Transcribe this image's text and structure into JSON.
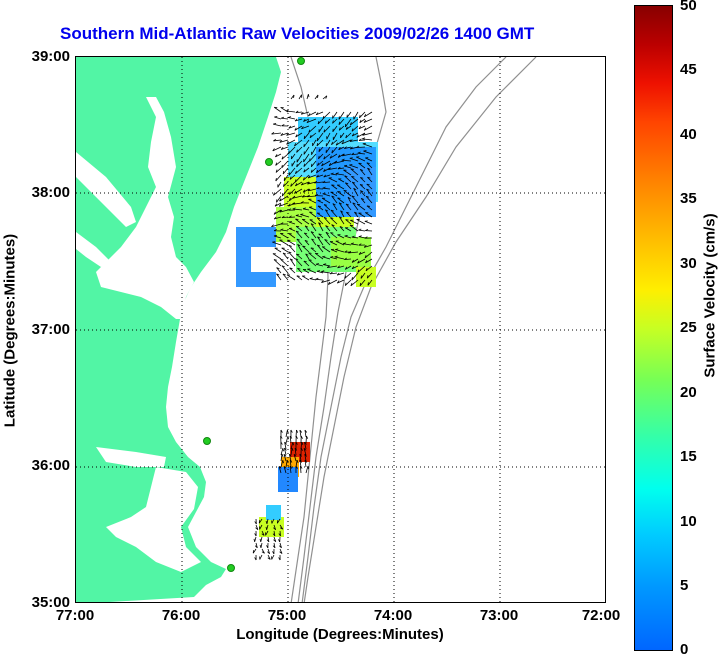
{
  "title": "Southern Mid-Atlantic Raw Velocities 2009/02/26 1400 GMT",
  "x_axis": {
    "label": "Longitude (Degrees:Minutes)",
    "ticks": [
      "77:00",
      "76:00",
      "75:00",
      "74:00",
      "73:00",
      "72:00"
    ]
  },
  "y_axis": {
    "label": "Latitude (Degrees:Minutes)",
    "ticks": [
      "39:00",
      "38:00",
      "37:00",
      "36:00",
      "35:00"
    ]
  },
  "colorbar": {
    "label": "Surface Velocity (cm/s)",
    "ticks": [
      "50",
      "45",
      "40",
      "35",
      "30",
      "25",
      "20",
      "15",
      "10",
      "5",
      "0"
    ],
    "range": [
      0,
      50
    ]
  },
  "colors": {
    "land": "#52f5a5",
    "title": "#0000ee",
    "vector": "#000000",
    "bathymetry": "#909090",
    "station": "#22cc22"
  }
}
